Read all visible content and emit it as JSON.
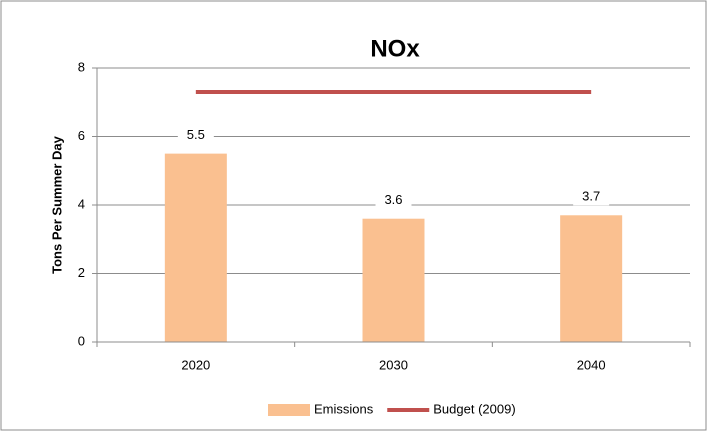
{
  "chart_data": {
    "type": "bar",
    "title": "NOx",
    "y_label": "Tons Per Summer Day",
    "categories": [
      "2020",
      "2030",
      "2040"
    ],
    "series": [
      {
        "name": "Emissions",
        "type": "bar",
        "color": "#fac090",
        "values": [
          5.5,
          3.6,
          3.7
        ],
        "data_labels": true
      },
      {
        "name": "Budget (2009)",
        "type": "line",
        "color": "#c0504d",
        "values": [
          7.3,
          7.3,
          7.3
        ]
      }
    ],
    "ylim": [
      0,
      8
    ],
    "yticks": [
      0,
      2,
      4,
      6,
      8
    ],
    "grid": true,
    "legend": "bottom"
  }
}
